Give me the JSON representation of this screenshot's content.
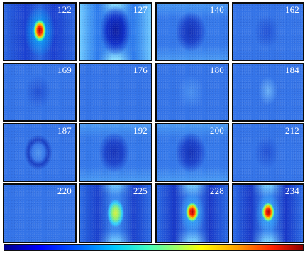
{
  "panels": [
    {
      "label": "122",
      "kind": "hot-narrow"
    },
    {
      "label": "127",
      "kind": "dark-cyanedge"
    },
    {
      "label": "140",
      "kind": "dark"
    },
    {
      "label": "162",
      "kind": "faint-dark"
    },
    {
      "label": "169",
      "kind": "faint-dark"
    },
    {
      "label": "176",
      "kind": "flat"
    },
    {
      "label": "180",
      "kind": "faint-light"
    },
    {
      "label": "184",
      "kind": "light"
    },
    {
      "label": "187",
      "kind": "ring"
    },
    {
      "label": "192",
      "kind": "dark"
    },
    {
      "label": "200",
      "kind": "dark"
    },
    {
      "label": "212",
      "kind": "faint-dark"
    },
    {
      "label": "220",
      "kind": "flat"
    },
    {
      "label": "225",
      "kind": "warm"
    },
    {
      "label": "228",
      "kind": "hot"
    },
    {
      "label": "234",
      "kind": "hot"
    }
  ],
  "colorbar": {
    "name": "jet-colorbar"
  }
}
